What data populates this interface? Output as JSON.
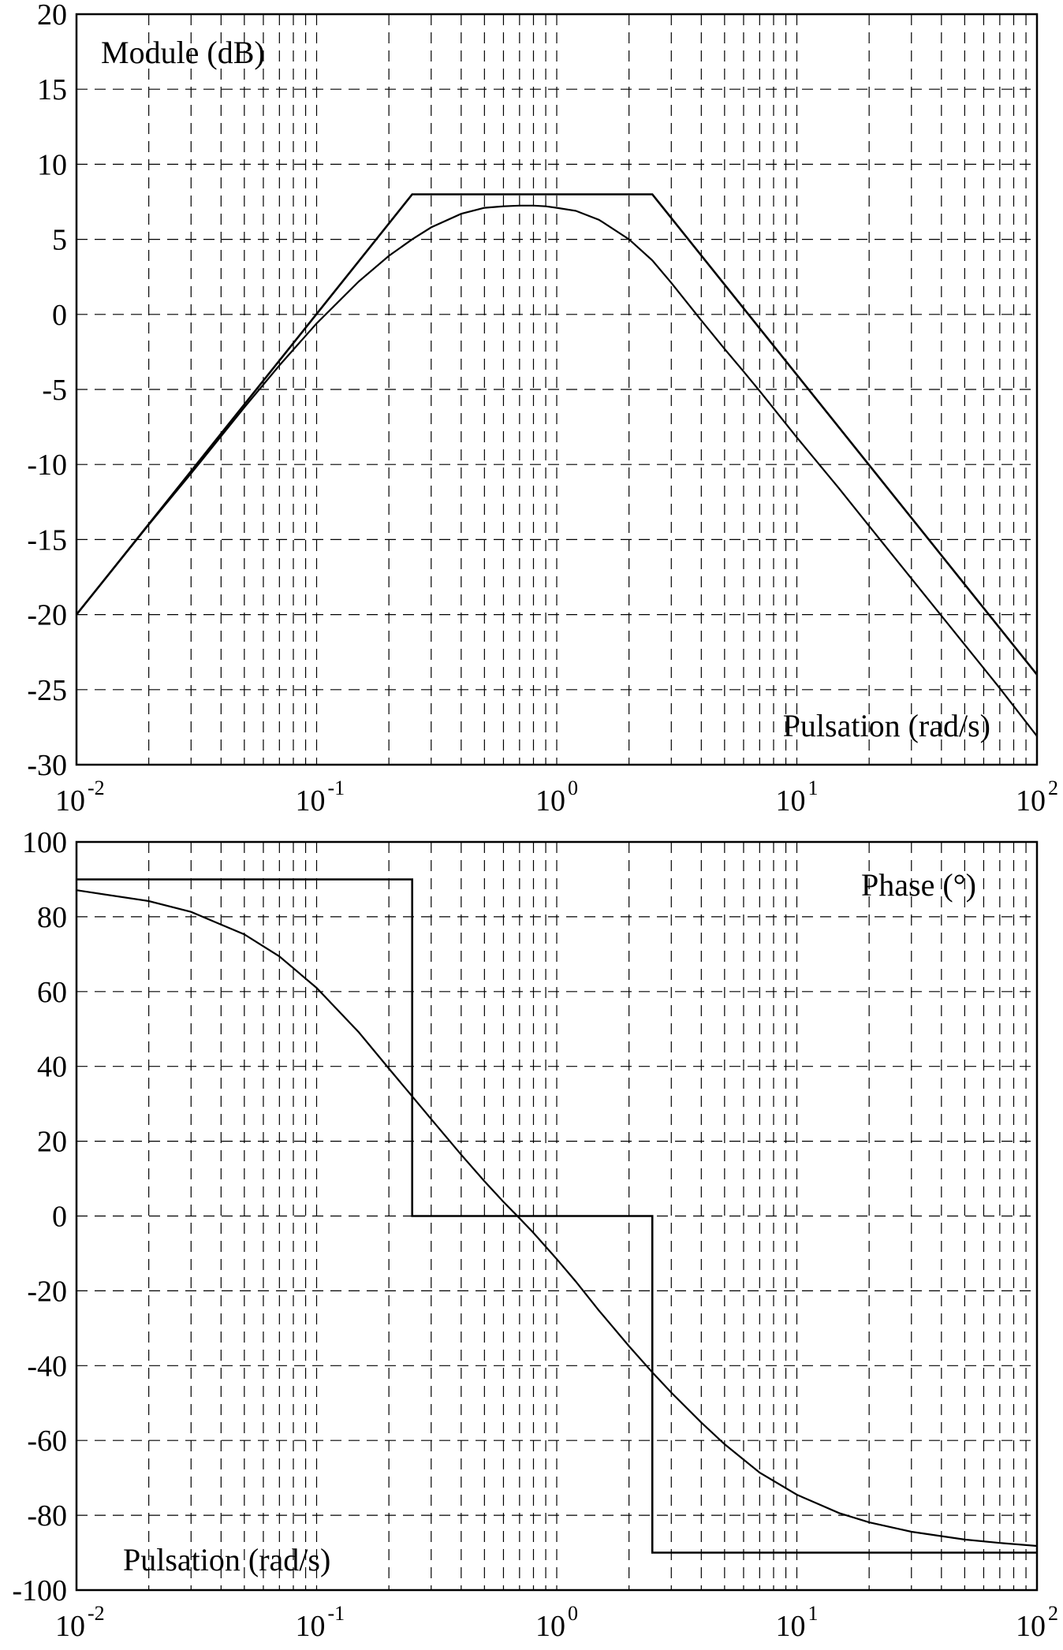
{
  "colors": {
    "background": "#ffffff",
    "ink": "#000000"
  },
  "chart_data": [
    {
      "type": "line",
      "title": "",
      "annotation": "Module (dB)",
      "xlabel": "Pulsation (rad/s)",
      "ylabel": "",
      "xscale": "log",
      "xlim": [
        0.01,
        100
      ],
      "ylim": [
        -30,
        20
      ],
      "grid": true,
      "y_ticks": [
        "20",
        "15",
        "10",
        "5",
        "0",
        "-5",
        "-10",
        "-15",
        "-20",
        "-25",
        "-30"
      ],
      "y_tick_values": [
        20,
        15,
        10,
        5,
        0,
        -5,
        -10,
        -15,
        -20,
        -25,
        -30
      ],
      "x_ticks": [
        {
          "base": "10",
          "exp": "-2",
          "value": 0.01
        },
        {
          "base": "10",
          "exp": "-1",
          "value": 0.1
        },
        {
          "base": "10",
          "exp": "0",
          "value": 1
        },
        {
          "base": "10",
          "exp": "1",
          "value": 10
        },
        {
          "base": "10",
          "exp": "2",
          "value": 100
        }
      ],
      "series": [
        {
          "x": [
            0.01,
            0.02,
            0.03,
            0.05,
            0.07,
            0.1,
            0.15,
            0.2,
            0.25,
            0.3,
            0.4,
            0.5,
            0.6,
            0.7,
            0.8,
            0.9,
            1,
            1.2,
            1.5,
            2,
            2.5,
            3,
            4,
            5,
            6,
            7,
            10,
            15,
            20,
            30,
            50,
            70,
            100
          ],
          "values": [
            -20,
            -14,
            -10.6,
            -6.2,
            -3.4,
            -0.6,
            2.2,
            3.9,
            5.0,
            5.8,
            6.7,
            7.1,
            7.2,
            7.25,
            7.25,
            7.2,
            7.1,
            6.9,
            6.3,
            5.0,
            3.6,
            2.1,
            -0.4,
            -2.3,
            -3.8,
            -5.1,
            -8.2,
            -11.6,
            -14.1,
            -17.6,
            -22.0,
            -24.9,
            -28.1
          ]
        },
        {
          "x": [
            0.01,
            0.25,
            2.5,
            100
          ],
          "values": [
            -20,
            8,
            8,
            -24
          ]
        }
      ]
    },
    {
      "type": "line",
      "title": "",
      "annotation": "Phase (°)",
      "xlabel": "Pulsation (rad/s)",
      "ylabel": "",
      "xscale": "log",
      "xlim": [
        0.01,
        100
      ],
      "ylim": [
        -100,
        100
      ],
      "grid": true,
      "y_ticks": [
        "100",
        "80",
        "60",
        "40",
        "20",
        "0",
        "-20",
        "-40",
        "-60",
        "-80",
        "-100"
      ],
      "y_tick_values": [
        100,
        80,
        60,
        40,
        20,
        0,
        -20,
        -40,
        -60,
        -80,
        -100
      ],
      "x_ticks": [
        {
          "base": "10",
          "exp": "-2",
          "value": 0.01
        },
        {
          "base": "10",
          "exp": "-1",
          "value": 0.1
        },
        {
          "base": "10",
          "exp": "0",
          "value": 1
        },
        {
          "base": "10",
          "exp": "1",
          "value": 10
        },
        {
          "base": "10",
          "exp": "2",
          "value": 100
        }
      ],
      "series": [
        {
          "x": [
            0.01,
            0.02,
            0.03,
            0.05,
            0.07,
            0.1,
            0.15,
            0.2,
            0.25,
            0.3,
            0.4,
            0.5,
            0.6,
            0.7,
            0.8,
            1,
            1.2,
            1.5,
            2,
            2.5,
            3,
            4,
            5,
            7,
            10,
            15,
            20,
            30,
            50,
            70,
            100
          ],
          "values": [
            87.1,
            84.2,
            81.3,
            75.3,
            69.4,
            61.0,
            49.1,
            39.4,
            32.0,
            25.9,
            16.4,
            9.3,
            3.8,
            -0.6,
            -4.5,
            -11.5,
            -17.5,
            -25.3,
            -34.8,
            -41.8,
            -47.2,
            -55.2,
            -61.0,
            -68.6,
            -74.5,
            -79.4,
            -81.9,
            -84.4,
            -86.5,
            -87.4,
            -88.2
          ]
        },
        {
          "x": [
            0.01,
            0.25,
            0.25,
            2.5,
            2.5,
            100
          ],
          "values": [
            90,
            90,
            0,
            0,
            -90,
            -90
          ]
        }
      ]
    }
  ]
}
